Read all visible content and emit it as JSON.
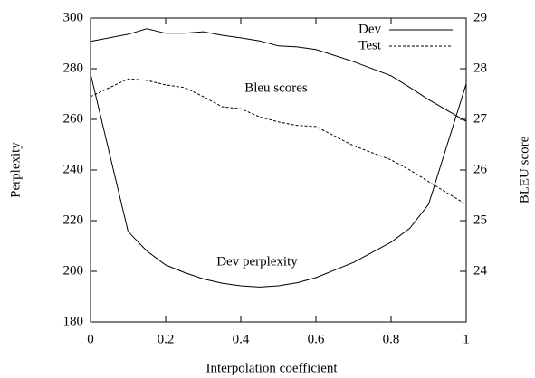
{
  "chart_data": {
    "type": "line",
    "xlabel": "Interpolation coefficient",
    "ylabel": "Perplexity",
    "y2label": "BLEU score",
    "annotations": [
      "Bleu scores",
      "Dev perplexity"
    ],
    "x": [
      0,
      0.1,
      0.15,
      0.2,
      0.25,
      0.3,
      0.35,
      0.4,
      0.45,
      0.5,
      0.55,
      0.6,
      0.7,
      0.8,
      0.85,
      0.9,
      1
    ],
    "series": [
      {
        "name": "Dev",
        "color": "#000000",
        "dash": false,
        "axis": "y2",
        "values": [
          28.54,
          28.68,
          28.79,
          28.7,
          28.7,
          28.73,
          28.66,
          28.61,
          28.55,
          28.45,
          28.43,
          28.38,
          28.14,
          27.86,
          27.63,
          27.39,
          26.96
        ]
      },
      {
        "name": "Test",
        "color": "#000000",
        "dash": true,
        "axis": "y2",
        "values": [
          27.45,
          27.8,
          27.77,
          27.68,
          27.63,
          27.45,
          27.25,
          27.21,
          27.05,
          26.95,
          26.88,
          26.86,
          26.48,
          26.2,
          26.0,
          25.77,
          25.32
        ]
      },
      {
        "color": "#000000",
        "dash": false,
        "axis": "y",
        "values": [
          278,
          215.7,
          208,
          202.5,
          199.5,
          197,
          195.3,
          194.3,
          193.8,
          194.3,
          195.5,
          197.5,
          203.5,
          211.5,
          217,
          226.5,
          274
        ]
      }
    ],
    "xlim": [
      0,
      1
    ],
    "xticks": [
      0,
      0.2,
      0.4,
      0.6,
      0.8,
      1
    ],
    "ylim": [
      180,
      300
    ],
    "yticks": [
      180,
      200,
      220,
      240,
      260,
      280,
      300
    ],
    "y2lim": [
      23,
      29
    ],
    "y2ticks": [
      24,
      25,
      26,
      27,
      28,
      29
    ],
    "legend": "top-right"
  }
}
